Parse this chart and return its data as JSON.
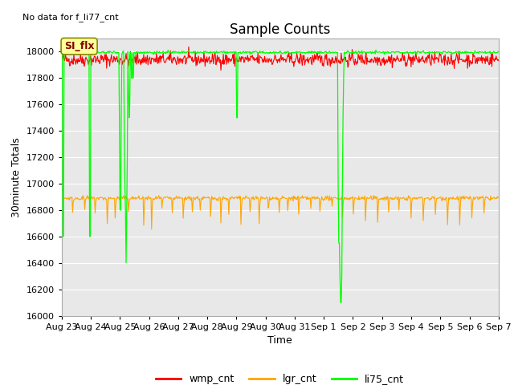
{
  "title": "Sample Counts",
  "xlabel": "Time",
  "ylabel": "30minute Totals",
  "top_left_text": "No data for f_li77_cnt",
  "annotation_text": "SI_flx",
  "ylim": [
    16000,
    18100
  ],
  "yticks": [
    16000,
    16200,
    16400,
    16600,
    16800,
    17000,
    17200,
    17400,
    17600,
    17800,
    18000
  ],
  "x_labels": [
    "Aug 23",
    "Aug 24",
    "Aug 25",
    "Aug 26",
    "Aug 27",
    "Aug 28",
    "Aug 29",
    "Aug 30",
    "Aug 31",
    "Sep 1",
    "Sep 2",
    "Sep 3",
    "Sep 4",
    "Sep 5",
    "Sep 6",
    "Sep 7"
  ],
  "n_points": 720,
  "wmp_base": 17940,
  "wmp_noise": 25,
  "lgr_base": 16890,
  "lgr_noise": 8,
  "li75_base": 17995,
  "li75_noise": 5,
  "wmp_color": "#ff0000",
  "lgr_color": "#ffa500",
  "li75_color": "#00ff00",
  "bg_color": "#e8e8e8",
  "fig_color": "#ffffff",
  "grid_color": "#ffffff",
  "legend_labels": [
    "wmp_cnt",
    "lgr_cnt",
    "li75_cnt"
  ]
}
